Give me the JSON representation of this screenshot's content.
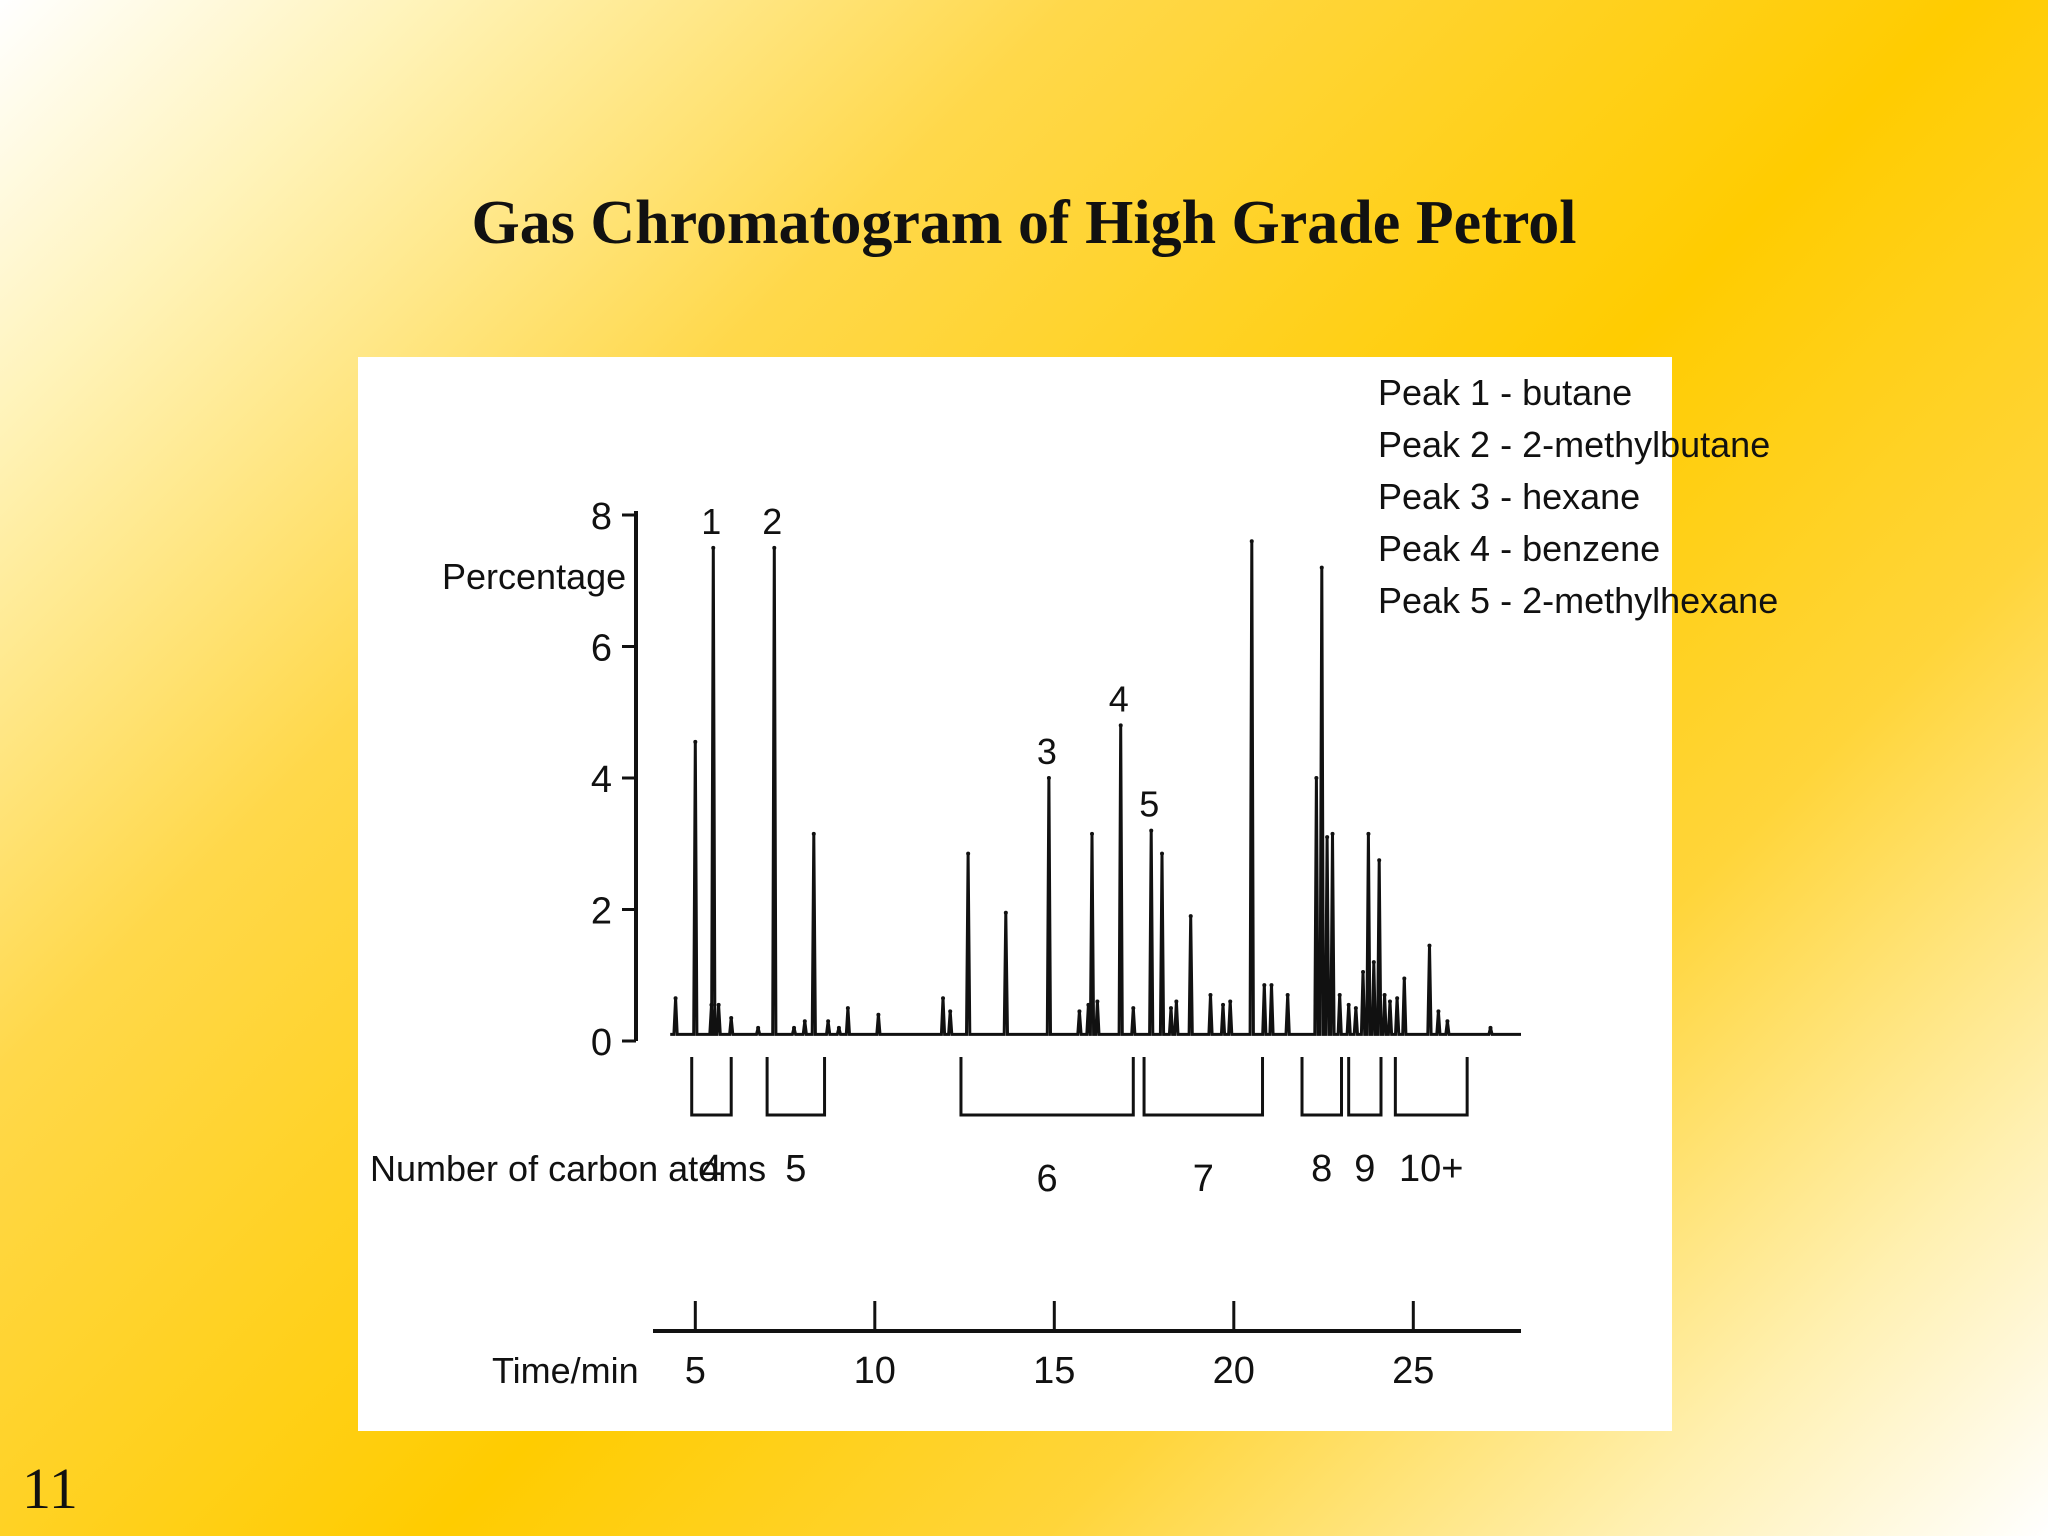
{
  "slide": {
    "title": "Gas Chromatogram of High Grade Petrol",
    "number": "11"
  },
  "chart_data": {
    "type": "line",
    "title": "Gas Chromatogram of High Grade Petrol",
    "xlabel": "Time/min",
    "ylabel": "Percentage",
    "xlim": [
      4.1,
      28.0
    ],
    "ylim": [
      0,
      8
    ],
    "yticks": [
      "0",
      "2",
      "4",
      "6",
      "8"
    ],
    "xticks": [
      "5",
      "10",
      "15",
      "20",
      "25"
    ],
    "baseline": 0.1,
    "peaks": [
      {
        "t": 4.45,
        "h": 0.65
      },
      {
        "t": 5.0,
        "h": 4.55
      },
      {
        "t": 5.45,
        "h": 0.55
      },
      {
        "t": 5.5,
        "h": 7.5,
        "label": "1"
      },
      {
        "t": 5.65,
        "h": 0.55
      },
      {
        "t": 6.0,
        "h": 0.35
      },
      {
        "t": 6.75,
        "h": 0.2
      },
      {
        "t": 7.2,
        "h": 7.5,
        "label": "2"
      },
      {
        "t": 7.75,
        "h": 0.2
      },
      {
        "t": 8.05,
        "h": 0.3
      },
      {
        "t": 8.3,
        "h": 3.15
      },
      {
        "t": 8.7,
        "h": 0.3
      },
      {
        "t": 9.0,
        "h": 0.2
      },
      {
        "t": 9.25,
        "h": 0.5
      },
      {
        "t": 10.1,
        "h": 0.4
      },
      {
        "t": 11.9,
        "h": 0.65
      },
      {
        "t": 12.1,
        "h": 0.45
      },
      {
        "t": 12.6,
        "h": 2.85
      },
      {
        "t": 13.65,
        "h": 1.95
      },
      {
        "t": 14.85,
        "h": 4.0,
        "label": "3"
      },
      {
        "t": 15.7,
        "h": 0.45
      },
      {
        "t": 15.95,
        "h": 0.55
      },
      {
        "t": 16.05,
        "h": 3.15
      },
      {
        "t": 16.2,
        "h": 0.6
      },
      {
        "t": 16.85,
        "h": 4.8,
        "label": "4"
      },
      {
        "t": 17.2,
        "h": 0.5
      },
      {
        "t": 17.7,
        "h": 3.2,
        "label": "5"
      },
      {
        "t": 18.0,
        "h": 2.85
      },
      {
        "t": 18.25,
        "h": 0.5
      },
      {
        "t": 18.4,
        "h": 0.6
      },
      {
        "t": 18.8,
        "h": 1.9
      },
      {
        "t": 19.35,
        "h": 0.7
      },
      {
        "t": 19.7,
        "h": 0.55
      },
      {
        "t": 19.9,
        "h": 0.6
      },
      {
        "t": 20.5,
        "h": 7.6
      },
      {
        "t": 20.85,
        "h": 0.85
      },
      {
        "t": 21.05,
        "h": 0.85
      },
      {
        "t": 21.5,
        "h": 0.7
      },
      {
        "t": 22.3,
        "h": 4.0
      },
      {
        "t": 22.45,
        "h": 7.2
      },
      {
        "t": 22.6,
        "h": 3.1
      },
      {
        "t": 22.75,
        "h": 3.15
      },
      {
        "t": 22.95,
        "h": 0.7
      },
      {
        "t": 23.2,
        "h": 0.55
      },
      {
        "t": 23.4,
        "h": 0.5
      },
      {
        "t": 23.6,
        "h": 1.05
      },
      {
        "t": 23.75,
        "h": 3.15
      },
      {
        "t": 23.9,
        "h": 1.2
      },
      {
        "t": 24.05,
        "h": 2.75
      },
      {
        "t": 24.2,
        "h": 0.7
      },
      {
        "t": 24.35,
        "h": 0.6
      },
      {
        "t": 24.55,
        "h": 0.65
      },
      {
        "t": 24.75,
        "h": 0.95
      },
      {
        "t": 25.45,
        "h": 1.45
      },
      {
        "t": 25.7,
        "h": 0.45
      },
      {
        "t": 25.95,
        "h": 0.3
      },
      {
        "t": 27.15,
        "h": 0.2
      }
    ],
    "legend": [
      "Peak 1 - butane",
      "Peak 2 - 2-methylbutane",
      "Peak 3 - hexane",
      "Peak 4 - benzene",
      "Peak 5 - 2-methylhexane"
    ],
    "carbon_axis_label": "Number of carbon atoms",
    "carbon_groups": [
      {
        "label": "4",
        "start": 4.9,
        "end": 6.0
      },
      {
        "label": "5",
        "start": 7.0,
        "end": 8.6
      },
      {
        "label": "6",
        "start": 12.4,
        "end": 17.2
      },
      {
        "label": "7",
        "start": 17.5,
        "end": 20.8
      },
      {
        "label": "8",
        "start": 21.9,
        "end": 23.0
      },
      {
        "label": "9",
        "start": 23.2,
        "end": 24.1
      },
      {
        "label": "10+",
        "start": 24.5,
        "end": 26.5
      }
    ]
  }
}
